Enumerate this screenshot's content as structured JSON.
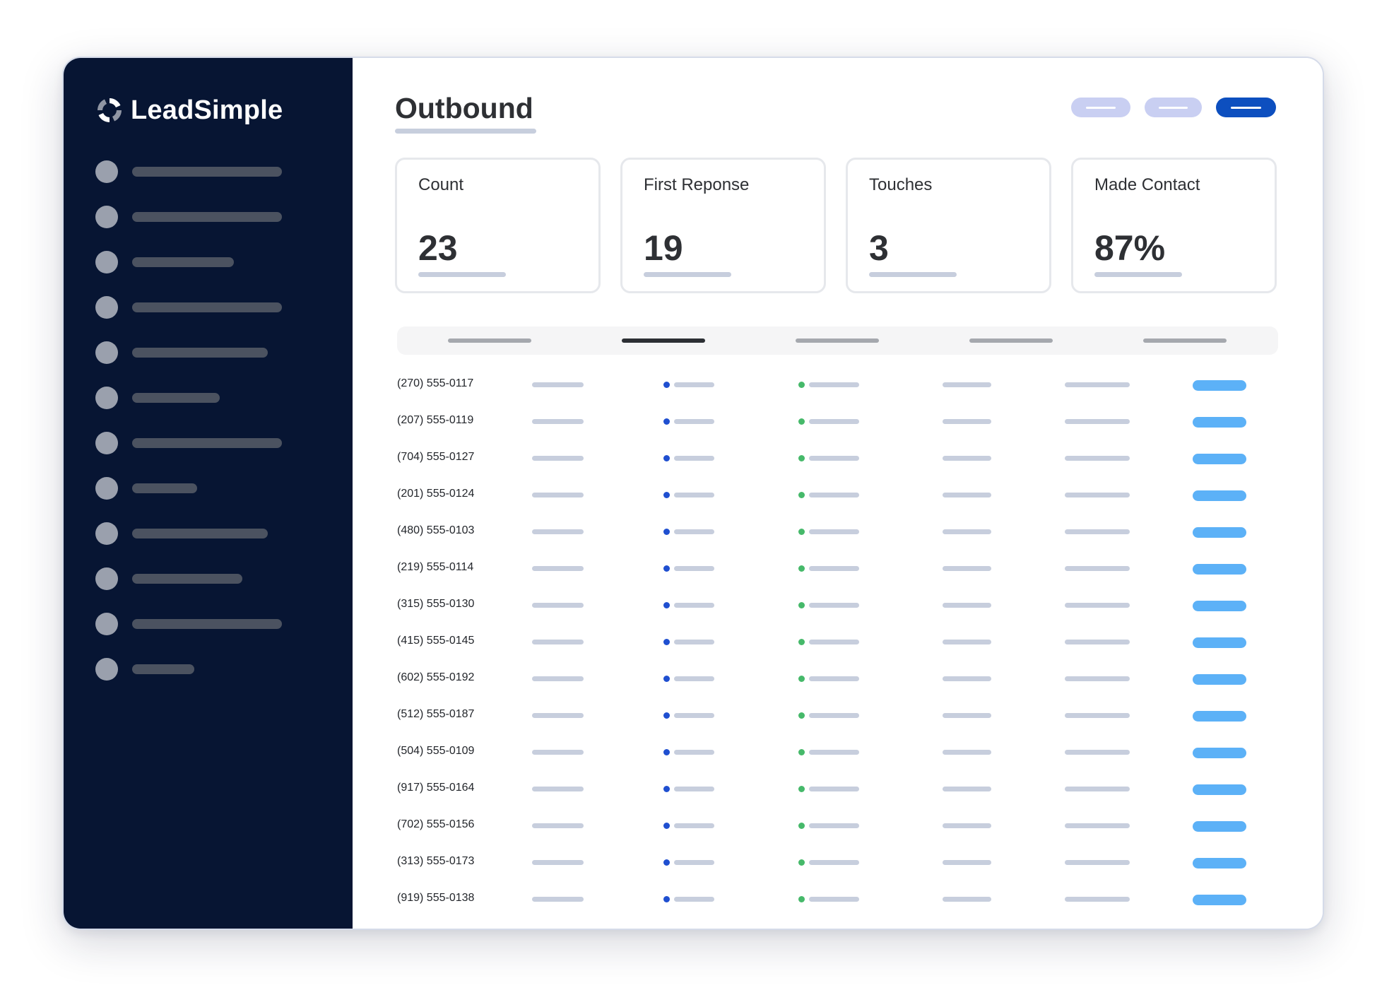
{
  "app": {
    "name": "LeadSimple",
    "logo_icon": "leadsimple-logo-icon"
  },
  "sidebar": {
    "item_count": 12,
    "icons": "placeholder-circle-icon"
  },
  "page": {
    "title": "Outbound"
  },
  "stats": [
    {
      "label": "Count",
      "value": "23"
    },
    {
      "label": "First Reponse",
      "value": "19"
    },
    {
      "label": "Touches",
      "value": "3"
    },
    {
      "label": "Made Contact",
      "value": "87%"
    }
  ],
  "tabs": {
    "count": 5,
    "active_index": 1
  },
  "table": {
    "rows": [
      {
        "phone": "(270) 555-0117"
      },
      {
        "phone": "(207) 555-0119"
      },
      {
        "phone": "(704) 555-0127"
      },
      {
        "phone": "(201) 555-0124"
      },
      {
        "phone": "(480) 555-0103"
      },
      {
        "phone": "(219) 555-0114"
      },
      {
        "phone": "(315) 555-0130"
      },
      {
        "phone": "(415) 555-0145"
      },
      {
        "phone": "(602) 555-0192"
      },
      {
        "phone": "(512) 555-0187"
      },
      {
        "phone": "(504) 555-0109"
      },
      {
        "phone": "(917) 555-0164"
      },
      {
        "phone": "(702) 555-0156"
      },
      {
        "phone": "(313) 555-0173"
      },
      {
        "phone": "(919) 555-0138"
      }
    ]
  },
  "colors": {
    "sidebar_bg": "#071533",
    "primary_button": "#0d4fbf",
    "secondary_button": "#c9cff2",
    "status_blue": "#1f4fd0",
    "status_green": "#46b96a",
    "action_pill": "#5cb1f7"
  }
}
